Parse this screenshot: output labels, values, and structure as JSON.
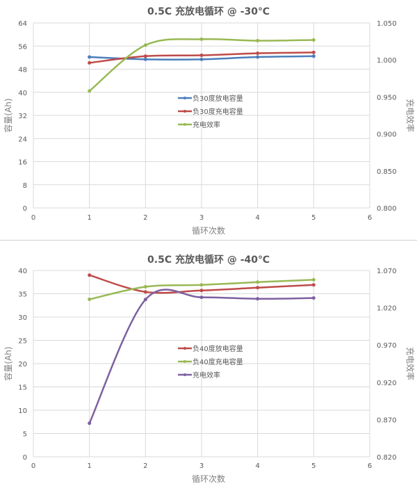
{
  "chart_data": [
    {
      "type": "line",
      "title": "0.5C 充放电循环 @ -30℃",
      "xlabel": "循环次数",
      "ylabel": "容量(Ah)",
      "y2label": "充电效率",
      "xlim": [
        0,
        6
      ],
      "ylim": [
        0,
        64
      ],
      "y2lim": [
        0.8,
        1.05
      ],
      "xticks": [
        "0",
        "1",
        "2",
        "3",
        "4",
        "5",
        "6"
      ],
      "yticks": [
        "0",
        "8",
        "16",
        "24",
        "32",
        "40",
        "48",
        "56",
        "64"
      ],
      "y2ticks": [
        "0.800",
        "0.850",
        "0.900",
        "0.950",
        "1.000",
        "1.050"
      ],
      "grid": true,
      "legend_position": "center",
      "x": [
        1,
        2,
        3,
        4,
        5
      ],
      "series": [
        {
          "name": "负30度放电容量",
          "axis": "left",
          "color": "#4a7ebb",
          "values": [
            52.2,
            51.4,
            51.4,
            52.2,
            52.5
          ]
        },
        {
          "name": "负30度充电容量",
          "axis": "left",
          "color": "#be4b48",
          "values": [
            50.2,
            52.5,
            52.8,
            53.5,
            53.8
          ]
        },
        {
          "name": "充电效率",
          "axis": "right",
          "color": "#98b954",
          "values": [
            0.958,
            1.02,
            1.028,
            1.026,
            1.027
          ]
        }
      ]
    },
    {
      "type": "line",
      "title": "0.5C 充放电循环 @ -40℃",
      "xlabel": "循环次数",
      "ylabel": "容量(Ah)",
      "y2label": "充电效率",
      "xlim": [
        0,
        6
      ],
      "ylim": [
        0,
        40
      ],
      "y2lim": [
        0.82,
        1.07
      ],
      "xticks": [
        "0",
        "1",
        "2",
        "3",
        "4",
        "5",
        "6"
      ],
      "yticks": [
        "0",
        "5",
        "10",
        "15",
        "20",
        "25",
        "30",
        "35",
        "40"
      ],
      "y2ticks": [
        "0.820",
        "0.870",
        "0.920",
        "0.970",
        "1.020",
        "1.070"
      ],
      "grid": true,
      "legend_position": "center",
      "x": [
        1,
        2,
        3,
        4,
        5
      ],
      "series": [
        {
          "name": "负40度放电容量",
          "axis": "left",
          "color": "#be4b48",
          "values": [
            39.0,
            35.4,
            35.7,
            36.3,
            36.9
          ]
        },
        {
          "name": "负40度充电容量",
          "axis": "left",
          "color": "#98b954",
          "values": [
            33.8,
            36.5,
            36.9,
            37.5,
            38.0
          ]
        },
        {
          "name": "充电效率",
          "axis": "right",
          "color": "#7d60a0",
          "values": [
            0.865,
            1.031,
            1.034,
            1.032,
            1.033
          ]
        }
      ]
    }
  ]
}
